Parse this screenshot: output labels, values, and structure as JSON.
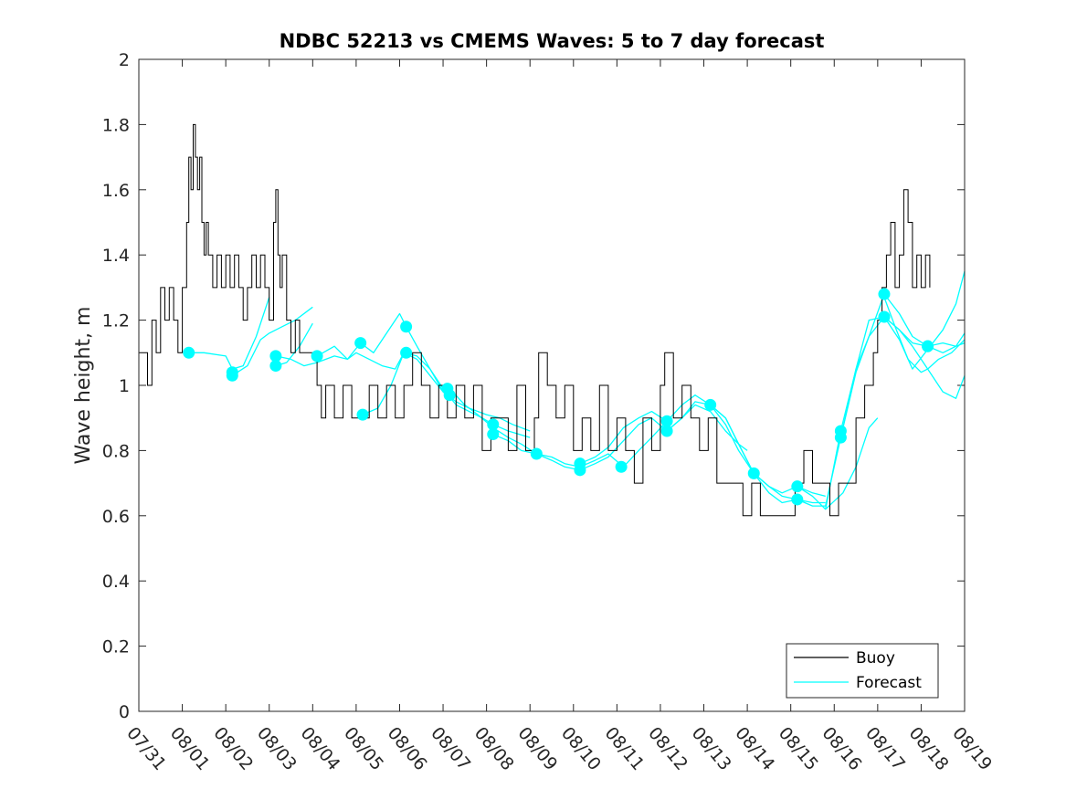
{
  "chart_data": {
    "type": "line",
    "title": "NDBC 52213 vs CMEMS Waves: 5 to 7 day forecast",
    "xlabel": "",
    "ylabel": "Wave height, m",
    "xlim": [
      0,
      19
    ],
    "ylim": [
      0,
      2
    ],
    "xtick_labels": [
      "07/31",
      "08/01",
      "08/02",
      "08/03",
      "08/04",
      "08/05",
      "08/06",
      "08/07",
      "08/08",
      "08/09",
      "08/10",
      "08/11",
      "08/12",
      "08/13",
      "08/14",
      "08/15",
      "08/16",
      "08/17",
      "08/18",
      "08/19"
    ],
    "ytick_labels": [
      "0",
      "0.2",
      "0.4",
      "0.6",
      "0.8",
      "1",
      "1.2",
      "1.4",
      "1.6",
      "1.8",
      "2"
    ],
    "legend": {
      "location": "bottom-right",
      "entries": [
        "Buoy",
        "Forecast"
      ]
    },
    "colors": {
      "buoy": "#000000",
      "forecast": "#00ffff",
      "axis": "#262626"
    },
    "series": [
      {
        "name": "Buoy",
        "x": [
          0.0,
          0.1,
          0.2,
          0.3,
          0.4,
          0.5,
          0.6,
          0.7,
          0.8,
          0.9,
          1.0,
          1.1,
          1.15,
          1.2,
          1.25,
          1.3,
          1.35,
          1.4,
          1.45,
          1.5,
          1.55,
          1.6,
          1.7,
          1.8,
          1.9,
          2.0,
          2.1,
          2.2,
          2.3,
          2.4,
          2.5,
          2.6,
          2.7,
          2.8,
          2.9,
          3.0,
          3.1,
          3.15,
          3.2,
          3.25,
          3.3,
          3.4,
          3.5,
          3.6,
          3.7,
          3.8,
          3.9,
          4.0,
          4.1,
          4.2,
          4.3,
          4.5,
          4.7,
          4.9,
          5.1,
          5.3,
          5.5,
          5.7,
          5.9,
          6.1,
          6.3,
          6.5,
          6.7,
          6.9,
          7.1,
          7.3,
          7.5,
          7.7,
          7.9,
          8.1,
          8.3,
          8.5,
          8.7,
          8.9,
          9.1,
          9.2,
          9.4,
          9.6,
          9.8,
          10.0,
          10.2,
          10.4,
          10.6,
          10.8,
          11.0,
          11.2,
          11.4,
          11.6,
          11.8,
          12.0,
          12.1,
          12.3,
          12.5,
          12.7,
          12.9,
          13.1,
          13.3,
          13.5,
          13.7,
          13.9,
          14.1,
          14.3,
          14.5,
          14.7,
          14.9,
          15.1,
          15.3,
          15.5,
          15.7,
          15.9,
          16.1,
          16.3,
          16.5,
          16.7,
          16.9,
          17.0,
          17.1,
          17.2,
          17.3,
          17.4,
          17.5,
          17.6,
          17.7,
          17.8,
          17.9,
          18.0,
          18.1,
          18.2
        ],
        "values": [
          1.1,
          1.1,
          1.0,
          1.2,
          1.1,
          1.3,
          1.2,
          1.3,
          1.2,
          1.1,
          1.3,
          1.5,
          1.7,
          1.6,
          1.8,
          1.7,
          1.6,
          1.7,
          1.5,
          1.4,
          1.5,
          1.4,
          1.3,
          1.4,
          1.3,
          1.4,
          1.3,
          1.4,
          1.3,
          1.2,
          1.3,
          1.4,
          1.3,
          1.4,
          1.3,
          1.2,
          1.5,
          1.6,
          1.4,
          1.3,
          1.4,
          1.2,
          1.1,
          1.2,
          1.1,
          1.1,
          1.1,
          1.1,
          1.0,
          0.9,
          1.0,
          0.9,
          1.0,
          0.9,
          0.9,
          1.0,
          0.9,
          1.0,
          0.9,
          1.0,
          1.1,
          1.0,
          0.9,
          1.0,
          0.9,
          1.0,
          0.9,
          1.0,
          0.8,
          0.9,
          0.9,
          0.8,
          1.0,
          0.8,
          0.9,
          1.1,
          1.0,
          0.9,
          1.0,
          0.8,
          0.9,
          0.8,
          1.0,
          0.8,
          0.9,
          0.8,
          0.7,
          0.9,
          0.8,
          1.0,
          1.1,
          0.9,
          1.0,
          0.9,
          0.8,
          0.9,
          0.7,
          0.7,
          0.7,
          0.6,
          0.7,
          0.6,
          0.6,
          0.6,
          0.6,
          0.7,
          0.8,
          0.7,
          0.7,
          0.6,
          0.7,
          0.7,
          0.9,
          1.0,
          1.1,
          1.2,
          1.3,
          1.4,
          1.5,
          1.3,
          1.4,
          1.6,
          1.5,
          1.3,
          1.4,
          1.3,
          1.4,
          1.3
        ]
      },
      {
        "name": "Forecast",
        "traces": [
          {
            "x": [
              1.15,
              1.5,
              2.0,
              2.15,
              2.4,
              2.7,
              3.0
            ],
            "values": [
              1.1,
              1.1,
              1.09,
              1.05,
              1.06,
              1.15,
              1.27
            ]
          },
          {
            "x": [
              2.15,
              2.5,
              2.8,
              3.0,
              3.3,
              3.6,
              4.0
            ],
            "values": [
              1.03,
              1.06,
              1.14,
              1.16,
              1.18,
              1.2,
              1.24
            ]
          },
          {
            "x": [
              3.15,
              3.4,
              3.7,
              4.0
            ],
            "values": [
              1.06,
              1.07,
              1.12,
              1.19
            ]
          },
          {
            "x": [
              3.15,
              3.5,
              3.8,
              4.1,
              4.5,
              4.8,
              5.0,
              5.3,
              5.6,
              5.9,
              6.1,
              6.4,
              6.7,
              7.0
            ],
            "values": [
              1.09,
              1.08,
              1.06,
              1.07,
              1.09,
              1.08,
              1.1,
              1.08,
              1.06,
              1.05,
              1.1,
              1.08,
              1.03,
              0.98
            ]
          },
          {
            "x": [
              4.1,
              4.5,
              4.8,
              5.1,
              5.4,
              5.7,
              6.0,
              6.15,
              6.4,
              6.7,
              7.0,
              7.3,
              7.6,
              8.0,
              8.3,
              8.6,
              9.0
            ],
            "values": [
              1.09,
              1.12,
              1.08,
              1.13,
              1.1,
              1.16,
              1.22,
              1.18,
              1.12,
              1.05,
              0.98,
              0.95,
              0.93,
              0.91,
              0.9,
              0.88,
              0.86
            ]
          },
          {
            "x": [
              5.15,
              5.5,
              5.8,
              6.1,
              6.4,
              6.7,
              7.0,
              7.3,
              7.6,
              7.9,
              8.15,
              8.5,
              9.0
            ],
            "values": [
              0.91,
              0.93,
              1.0,
              1.1,
              1.09,
              1.05,
              0.99,
              0.94,
              0.92,
              0.9,
              0.88,
              0.86,
              0.84
            ]
          },
          {
            "x": [
              7.15,
              7.5,
              7.8,
              8.15,
              8.5,
              8.8,
              9.15,
              9.5,
              9.8,
              10.15,
              10.5,
              10.8,
              11.15,
              11.5,
              11.8,
              12.15
            ],
            "values": [
              0.99,
              0.94,
              0.91,
              0.87,
              0.84,
              0.82,
              0.79,
              0.78,
              0.76,
              0.75,
              0.77,
              0.79,
              0.75,
              0.8,
              0.84,
              0.89
            ]
          },
          {
            "x": [
              8.15,
              8.5,
              8.8,
              9.15,
              9.5,
              9.8,
              10.15,
              10.5,
              10.8,
              11.15,
              11.5,
              11.8,
              12.15,
              12.5,
              12.8,
              13.15,
              13.5,
              13.8,
              14.0
            ],
            "values": [
              0.85,
              0.83,
              0.8,
              0.79,
              0.77,
              0.75,
              0.74,
              0.76,
              0.78,
              0.83,
              0.88,
              0.9,
              0.86,
              0.9,
              0.94,
              0.92,
              0.86,
              0.82,
              0.8
            ]
          },
          {
            "x": [
              10.15,
              10.5,
              10.8,
              11.15,
              11.5,
              11.8,
              12.15,
              12.5,
              12.8,
              13.15,
              13.5,
              13.8,
              14.15,
              14.5,
              14.8,
              15.15,
              15.5,
              15.8
            ],
            "values": [
              0.76,
              0.78,
              0.81,
              0.87,
              0.9,
              0.92,
              0.89,
              0.94,
              0.97,
              0.94,
              0.9,
              0.82,
              0.73,
              0.69,
              0.66,
              0.65,
              0.64,
              0.64
            ]
          },
          {
            "x": [
              12.15,
              12.5,
              12.8,
              13.15,
              13.5,
              13.8,
              14.15,
              14.5,
              14.8,
              15.15,
              15.5,
              15.8
            ],
            "values": [
              0.86,
              0.9,
              0.95,
              0.94,
              0.88,
              0.8,
              0.73,
              0.69,
              0.67,
              0.69,
              0.67,
              0.66
            ]
          },
          {
            "x": [
              13.15,
              13.5,
              13.8,
              14.15,
              14.5,
              14.8,
              15.15,
              15.5,
              15.8,
              16.15,
              16.5,
              16.8,
              17.15,
              17.5,
              17.8,
              18.15,
              18.5,
              18.8,
              19.0
            ],
            "values": [
              0.94,
              0.9,
              0.82,
              0.73,
              0.67,
              0.64,
              0.65,
              0.63,
              0.63,
              0.84,
              1.05,
              1.2,
              1.21,
              1.17,
              1.13,
              1.12,
              1.1,
              1.12,
              1.13
            ]
          },
          {
            "x": [
              15.15,
              15.5,
              15.8,
              16.15,
              16.5,
              16.8,
              17.15,
              17.5,
              17.8,
              18.15,
              18.5,
              18.8,
              19.0
            ],
            "values": [
              0.69,
              0.66,
              0.62,
              0.86,
              1.05,
              1.15,
              1.28,
              1.22,
              1.15,
              1.12,
              1.13,
              1.12,
              1.16
            ]
          },
          {
            "x": [
              16.15,
              16.5,
              16.8,
              17.15,
              17.5,
              17.8,
              18.15,
              18.5,
              18.8,
              19.0
            ],
            "values": [
              0.84,
              1.04,
              1.15,
              1.21,
              1.14,
              1.05,
              1.11,
              1.17,
              1.25,
              1.35
            ]
          },
          {
            "x": [
              17.15,
              17.5,
              17.8,
              18.15,
              18.5,
              18.8,
              19.0
            ],
            "values": [
              1.21,
              1.17,
              1.12,
              1.05,
              0.98,
              0.96,
              1.03
            ]
          },
          {
            "x": [
              15.8,
              16.2,
              16.5,
              16.8,
              17.0
            ],
            "values": [
              0.62,
              0.67,
              0.75,
              0.87,
              0.9
            ]
          },
          {
            "x": [
              17.15,
              17.4,
              17.7,
              18.0,
              18.15,
              18.4,
              18.7,
              19.0
            ],
            "values": [
              1.27,
              1.18,
              1.08,
              1.04,
              1.05,
              1.08,
              1.1,
              1.14
            ]
          }
        ],
        "markers": {
          "x": [
            1.15,
            2.15,
            2.15,
            3.15,
            3.15,
            4.1,
            5.1,
            5.15,
            6.15,
            6.15,
            7.1,
            7.15,
            8.15,
            8.15,
            9.15,
            10.15,
            10.15,
            11.1,
            12.15,
            12.15,
            13.15,
            14.15,
            15.15,
            15.15,
            16.15,
            16.15,
            17.15,
            17.15,
            18.15,
            18.15
          ],
          "values": [
            1.1,
            1.04,
            1.03,
            1.09,
            1.06,
            1.09,
            1.13,
            0.91,
            1.18,
            1.1,
            0.99,
            0.97,
            0.88,
            0.85,
            0.79,
            0.76,
            0.74,
            0.75,
            0.89,
            0.86,
            0.94,
            0.73,
            0.69,
            0.65,
            0.86,
            0.84,
            1.28,
            1.21,
            1.12,
            1.12
          ]
        }
      }
    ]
  }
}
